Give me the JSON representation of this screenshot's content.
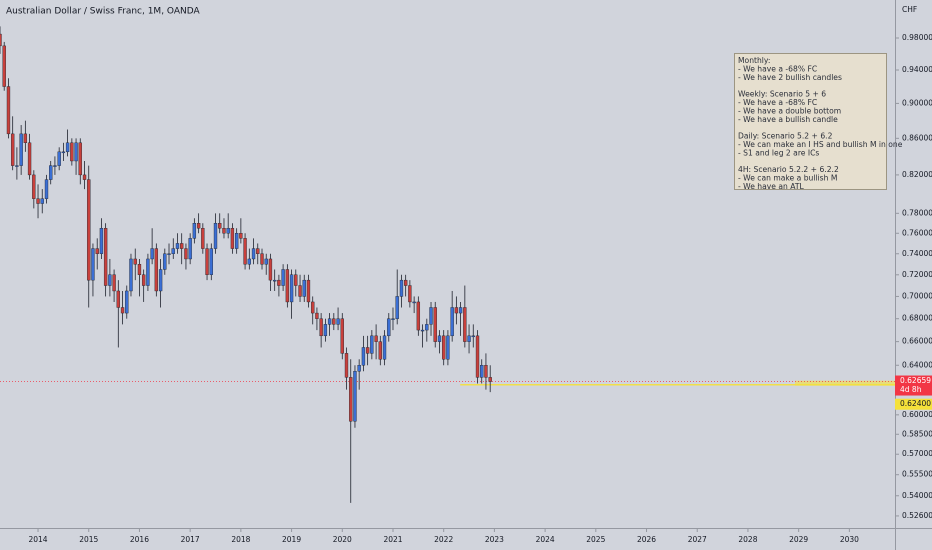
{
  "chart_data": {
    "type": "candlestick",
    "title": "Australian Dollar / Swiss Franc, 1M, OANDA",
    "currency": "CHF",
    "log_scale": true,
    "up_color": "#3b6fd4",
    "down_color": "#c8403c",
    "xlim": [
      2013.25,
      2030.9
    ],
    "xticks": [
      2014,
      2015,
      2016,
      2017,
      2018,
      2019,
      2020,
      2021,
      2022,
      2023,
      2024,
      2025,
      2026,
      2027,
      2028,
      2029,
      2030
    ],
    "ylim": [
      0.5178,
      1.0297
    ],
    "yticks": [
      {
        "value": 0.98,
        "label": "0.98000"
      },
      {
        "value": 0.94,
        "label": "0.94000"
      },
      {
        "value": 0.9,
        "label": "0.90000"
      },
      {
        "value": 0.86,
        "label": "0.86000"
      },
      {
        "value": 0.82,
        "label": "0.82000"
      },
      {
        "value": 0.78,
        "label": "0.78000"
      },
      {
        "value": 0.76,
        "label": "0.76000"
      },
      {
        "value": 0.74,
        "label": "0.74000"
      },
      {
        "value": 0.72,
        "label": "0.72000"
      },
      {
        "value": 0.7,
        "label": "0.70000"
      },
      {
        "value": 0.68,
        "label": "0.68000"
      },
      {
        "value": 0.66,
        "label": "0.66000"
      },
      {
        "value": 0.64,
        "label": "0.64000"
      },
      {
        "value": 0.6,
        "label": "0.60000"
      },
      {
        "value": 0.585,
        "label": "0.58500"
      },
      {
        "value": 0.57,
        "label": "0.57000"
      },
      {
        "value": 0.555,
        "label": "0.55500"
      },
      {
        "value": 0.54,
        "label": "0.54000"
      },
      {
        "value": 0.526,
        "label": "0.52600"
      }
    ],
    "x": [
      2013.25,
      2013.333,
      2013.417,
      2013.5,
      2013.583,
      2013.667,
      2013.75,
      2013.833,
      2013.917,
      2014,
      2014.083,
      2014.167,
      2014.25,
      2014.333,
      2014.417,
      2014.5,
      2014.583,
      2014.667,
      2014.75,
      2014.833,
      2014.917,
      2015,
      2015.083,
      2015.167,
      2015.25,
      2015.333,
      2015.417,
      2015.5,
      2015.583,
      2015.667,
      2015.75,
      2015.833,
      2015.917,
      2016,
      2016.083,
      2016.167,
      2016.25,
      2016.333,
      2016.417,
      2016.5,
      2016.583,
      2016.667,
      2016.75,
      2016.833,
      2016.917,
      2017,
      2017.083,
      2017.167,
      2017.25,
      2017.333,
      2017.417,
      2017.5,
      2017.583,
      2017.667,
      2017.75,
      2017.833,
      2017.917,
      2018,
      2018.083,
      2018.167,
      2018.25,
      2018.333,
      2018.417,
      2018.5,
      2018.583,
      2018.667,
      2018.75,
      2018.833,
      2018.917,
      2019,
      2019.083,
      2019.167,
      2019.25,
      2019.333,
      2019.417,
      2019.5,
      2019.583,
      2019.667,
      2019.75,
      2019.833,
      2019.917,
      2020,
      2020.083,
      2020.167,
      2020.25,
      2020.333,
      2020.417,
      2020.5,
      2020.583,
      2020.667,
      2020.75,
      2020.833,
      2020.917,
      2021,
      2021.083,
      2021.167,
      2021.25,
      2021.333,
      2021.417,
      2021.5,
      2021.583,
      2021.667,
      2021.75,
      2021.833,
      2021.917,
      2022,
      2022.083,
      2022.167,
      2022.25,
      2022.333,
      2022.417,
      2022.5,
      2022.583,
      2022.667,
      2022.75,
      2022.833,
      2022.917
    ],
    "open": [
      0.985,
      0.97,
      0.92,
      0.865,
      0.83,
      0.83,
      0.865,
      0.855,
      0.82,
      0.795,
      0.79,
      0.795,
      0.815,
      0.83,
      0.83,
      0.845,
      0.845,
      0.855,
      0.835,
      0.855,
      0.82,
      0.815,
      0.715,
      0.745,
      0.74,
      0.765,
      0.71,
      0.72,
      0.705,
      0.69,
      0.685,
      0.705,
      0.735,
      0.73,
      0.72,
      0.71,
      0.735,
      0.745,
      0.705,
      0.725,
      0.74,
      0.74,
      0.745,
      0.75,
      0.745,
      0.735,
      0.755,
      0.77,
      0.765,
      0.745,
      0.72,
      0.745,
      0.77,
      0.765,
      0.76,
      0.765,
      0.745,
      0.76,
      0.755,
      0.73,
      0.735,
      0.745,
      0.74,
      0.73,
      0.735,
      0.715,
      0.715,
      0.71,
      0.725,
      0.695,
      0.72,
      0.71,
      0.7,
      0.715,
      0.695,
      0.685,
      0.68,
      0.665,
      0.675,
      0.68,
      0.675,
      0.68,
      0.65,
      0.63,
      0.595,
      0.635,
      0.64,
      0.655,
      0.65,
      0.665,
      0.66,
      0.645,
      0.665,
      0.68,
      0.68,
      0.7,
      0.715,
      0.71,
      0.695,
      0.695,
      0.67,
      0.67,
      0.675,
      0.69,
      0.66,
      0.665,
      0.645,
      0.665,
      0.69,
      0.685,
      0.69,
      0.66,
      0.665,
      0.665,
      0.63,
      0.64,
      0.63
    ],
    "high": [
      0.995,
      0.975,
      0.93,
      0.885,
      0.85,
      0.875,
      0.88,
      0.865,
      0.825,
      0.81,
      0.805,
      0.82,
      0.835,
      0.84,
      0.85,
      0.855,
      0.87,
      0.86,
      0.86,
      0.86,
      0.835,
      0.83,
      0.75,
      0.755,
      0.775,
      0.77,
      0.735,
      0.725,
      0.715,
      0.705,
      0.71,
      0.74,
      0.745,
      0.735,
      0.725,
      0.74,
      0.765,
      0.75,
      0.735,
      0.745,
      0.75,
      0.755,
      0.76,
      0.76,
      0.75,
      0.76,
      0.775,
      0.78,
      0.77,
      0.75,
      0.75,
      0.78,
      0.78,
      0.775,
      0.78,
      0.77,
      0.765,
      0.775,
      0.76,
      0.745,
      0.755,
      0.75,
      0.745,
      0.74,
      0.74,
      0.725,
      0.72,
      0.73,
      0.73,
      0.725,
      0.725,
      0.72,
      0.72,
      0.72,
      0.7,
      0.69,
      0.685,
      0.68,
      0.685,
      0.685,
      0.69,
      0.685,
      0.655,
      0.645,
      0.64,
      0.645,
      0.665,
      0.665,
      0.67,
      0.675,
      0.665,
      0.67,
      0.685,
      0.69,
      0.725,
      0.72,
      0.72,
      0.715,
      0.7,
      0.7,
      0.675,
      0.68,
      0.695,
      0.695,
      0.67,
      0.67,
      0.67,
      0.705,
      0.7,
      0.695,
      0.71,
      0.675,
      0.675,
      0.67,
      0.645,
      0.65,
      0.64
    ],
    "low": [
      0.96,
      0.915,
      0.86,
      0.825,
      0.815,
      0.82,
      0.845,
      0.815,
      0.785,
      0.775,
      0.78,
      0.79,
      0.81,
      0.82,
      0.825,
      0.835,
      0.84,
      0.83,
      0.82,
      0.81,
      0.805,
      0.69,
      0.7,
      0.725,
      0.735,
      0.7,
      0.7,
      0.695,
      0.655,
      0.675,
      0.68,
      0.7,
      0.715,
      0.7,
      0.695,
      0.705,
      0.73,
      0.7,
      0.69,
      0.72,
      0.73,
      0.735,
      0.74,
      0.73,
      0.725,
      0.73,
      0.75,
      0.76,
      0.74,
      0.715,
      0.715,
      0.74,
      0.76,
      0.755,
      0.755,
      0.74,
      0.74,
      0.75,
      0.725,
      0.725,
      0.73,
      0.73,
      0.725,
      0.72,
      0.705,
      0.705,
      0.7,
      0.705,
      0.69,
      0.68,
      0.7,
      0.695,
      0.695,
      0.69,
      0.675,
      0.67,
      0.655,
      0.66,
      0.665,
      0.67,
      0.67,
      0.645,
      0.62,
      0.535,
      0.59,
      0.62,
      0.635,
      0.64,
      0.645,
      0.645,
      0.64,
      0.64,
      0.66,
      0.67,
      0.675,
      0.69,
      0.7,
      0.69,
      0.685,
      0.665,
      0.655,
      0.66,
      0.665,
      0.655,
      0.65,
      0.64,
      0.64,
      0.66,
      0.675,
      0.665,
      0.655,
      0.65,
      0.655,
      0.625,
      0.625,
      0.62,
      0.618
    ],
    "close": [
      0.97,
      0.92,
      0.865,
      0.83,
      0.83,
      0.865,
      0.855,
      0.82,
      0.795,
      0.79,
      0.795,
      0.815,
      0.83,
      0.83,
      0.845,
      0.845,
      0.855,
      0.835,
      0.855,
      0.82,
      0.815,
      0.715,
      0.745,
      0.74,
      0.765,
      0.71,
      0.72,
      0.705,
      0.69,
      0.685,
      0.705,
      0.735,
      0.73,
      0.72,
      0.71,
      0.735,
      0.745,
      0.705,
      0.725,
      0.74,
      0.74,
      0.745,
      0.75,
      0.745,
      0.735,
      0.755,
      0.77,
      0.765,
      0.745,
      0.72,
      0.745,
      0.77,
      0.765,
      0.76,
      0.765,
      0.745,
      0.76,
      0.755,
      0.73,
      0.735,
      0.745,
      0.74,
      0.73,
      0.735,
      0.715,
      0.715,
      0.71,
      0.725,
      0.695,
      0.72,
      0.71,
      0.7,
      0.715,
      0.695,
      0.685,
      0.68,
      0.665,
      0.675,
      0.68,
      0.675,
      0.68,
      0.65,
      0.63,
      0.595,
      0.635,
      0.64,
      0.655,
      0.65,
      0.665,
      0.66,
      0.645,
      0.665,
      0.68,
      0.68,
      0.7,
      0.715,
      0.71,
      0.695,
      0.695,
      0.67,
      0.67,
      0.675,
      0.69,
      0.66,
      0.665,
      0.645,
      0.665,
      0.69,
      0.685,
      0.69,
      0.66,
      0.665,
      0.665,
      0.63,
      0.64,
      0.63,
      0.62659
    ],
    "last_price": {
      "value": 0.62659,
      "label": "0.62659",
      "countdown": "4d 8h",
      "color": "#f23645"
    },
    "hline": {
      "value": 0.624,
      "label": "0.62400",
      "color": "#f5e13a"
    },
    "note": [
      [
        "Monthly:",
        "- We have a -68% FC",
        "- We have 2 bullish candles"
      ],
      [
        "Weekly: Scenario 5 + 6",
        "- We have a -68% FC",
        "- We have a double bottom",
        "- We have a bullish candle"
      ],
      [
        "Daily: Scenario 5.2 + 6.2",
        "- We can make an I HS and bullish M in one",
        "- S1 and leg 2 are ICs"
      ],
      [
        "4H: Scenario 5.2.2 + 6.2.2",
        "- We can make a bullish M",
        "- We have an ATL"
      ]
    ]
  }
}
